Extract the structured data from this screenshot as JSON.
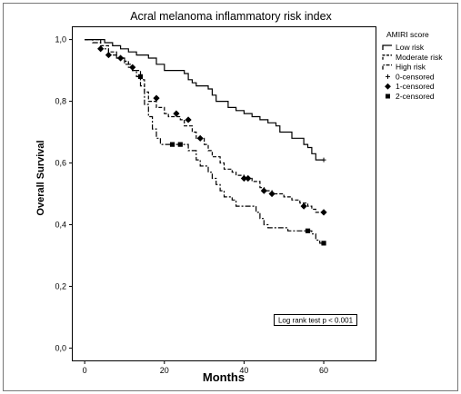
{
  "chart_data": {
    "type": "line",
    "title": "Acral melanoma inflammatory risk index",
    "xlabel": "Months",
    "ylabel": "Overall Survival",
    "xlim": [
      -3,
      73
    ],
    "ylim": [
      -0.04,
      1.04
    ],
    "x_ticks": [
      0,
      20,
      40,
      60
    ],
    "y_ticks": [
      0.0,
      0.2,
      0.4,
      0.6,
      0.8,
      1.0
    ],
    "y_tick_labels": [
      "0,0",
      "0,2",
      "0,4",
      "0,6",
      "0,8",
      "1,0"
    ],
    "grid": false,
    "legend_title": "AMIRI score",
    "legend_position": "top-right",
    "annotation": "Log rank test p < 0.001",
    "series": [
      {
        "name": "Low risk",
        "line_style": "solid",
        "points": [
          [
            0,
            1.0
          ],
          [
            3,
            1.0
          ],
          [
            5,
            0.99
          ],
          [
            7,
            0.98
          ],
          [
            9,
            0.97
          ],
          [
            11,
            0.96
          ],
          [
            13,
            0.95
          ],
          [
            16,
            0.94
          ],
          [
            18,
            0.92
          ],
          [
            20,
            0.9
          ],
          [
            23,
            0.9
          ],
          [
            25,
            0.89
          ],
          [
            26,
            0.87
          ],
          [
            27,
            0.86
          ],
          [
            28,
            0.85
          ],
          [
            31,
            0.84
          ],
          [
            32,
            0.82
          ],
          [
            33,
            0.8
          ],
          [
            35,
            0.8
          ],
          [
            36,
            0.78
          ],
          [
            38,
            0.77
          ],
          [
            40,
            0.76
          ],
          [
            42,
            0.75
          ],
          [
            44,
            0.74
          ],
          [
            46,
            0.73
          ],
          [
            48,
            0.72
          ],
          [
            49,
            0.7
          ],
          [
            51,
            0.7
          ],
          [
            52,
            0.68
          ],
          [
            54,
            0.68
          ],
          [
            55,
            0.66
          ],
          [
            56,
            0.65
          ],
          [
            57,
            0.63
          ],
          [
            58,
            0.61
          ],
          [
            60,
            0.61
          ]
        ],
        "censored": [
          [
            60,
            0.61
          ]
        ],
        "censor_marker": "0-censored"
      },
      {
        "name": "Moderate risk",
        "line_style": "dashed",
        "points": [
          [
            0,
            1.0
          ],
          [
            2,
            1.0
          ],
          [
            4,
            0.98
          ],
          [
            6,
            0.96
          ],
          [
            8,
            0.94
          ],
          [
            10,
            0.93
          ],
          [
            11,
            0.91
          ],
          [
            12,
            0.9
          ],
          [
            14,
            0.87
          ],
          [
            15,
            0.83
          ],
          [
            16,
            0.8
          ],
          [
            18,
            0.78
          ],
          [
            20,
            0.76
          ],
          [
            21,
            0.75
          ],
          [
            24,
            0.74
          ],
          [
            25,
            0.72
          ],
          [
            27,
            0.7
          ],
          [
            28,
            0.68
          ],
          [
            30,
            0.66
          ],
          [
            31,
            0.64
          ],
          [
            32,
            0.62
          ],
          [
            34,
            0.6
          ],
          [
            35,
            0.58
          ],
          [
            37,
            0.57
          ],
          [
            38,
            0.56
          ],
          [
            40,
            0.55
          ],
          [
            42,
            0.54
          ],
          [
            44,
            0.52
          ],
          [
            45,
            0.51
          ],
          [
            47,
            0.5
          ],
          [
            50,
            0.49
          ],
          [
            52,
            0.48
          ],
          [
            54,
            0.47
          ],
          [
            56,
            0.46
          ],
          [
            57,
            0.45
          ],
          [
            58,
            0.44
          ],
          [
            60,
            0.44
          ]
        ],
        "censored": [
          [
            4,
            0.97
          ],
          [
            6,
            0.95
          ],
          [
            9,
            0.94
          ],
          [
            12,
            0.91
          ],
          [
            18,
            0.81
          ],
          [
            23,
            0.76
          ],
          [
            26,
            0.74
          ],
          [
            29,
            0.68
          ],
          [
            40,
            0.55
          ],
          [
            41,
            0.55
          ],
          [
            45,
            0.51
          ],
          [
            47,
            0.5
          ],
          [
            55,
            0.46
          ],
          [
            60,
            0.44
          ]
        ],
        "censor_marker": "1-censored"
      },
      {
        "name": "High risk",
        "line_style": "dash-dot",
        "points": [
          [
            0,
            1.0
          ],
          [
            2,
            0.99
          ],
          [
            4,
            0.97
          ],
          [
            6,
            0.95
          ],
          [
            8,
            0.94
          ],
          [
            10,
            0.92
          ],
          [
            12,
            0.9
          ],
          [
            13,
            0.88
          ],
          [
            14,
            0.85
          ],
          [
            15,
            0.79
          ],
          [
            16,
            0.75
          ],
          [
            17,
            0.71
          ],
          [
            18,
            0.68
          ],
          [
            19,
            0.66
          ],
          [
            21,
            0.66
          ],
          [
            25,
            0.66
          ],
          [
            26,
            0.64
          ],
          [
            28,
            0.61
          ],
          [
            29,
            0.59
          ],
          [
            31,
            0.57
          ],
          [
            32,
            0.55
          ],
          [
            33,
            0.53
          ],
          [
            34,
            0.51
          ],
          [
            35,
            0.49
          ],
          [
            37,
            0.48
          ],
          [
            38,
            0.46
          ],
          [
            41,
            0.46
          ],
          [
            43,
            0.44
          ],
          [
            44,
            0.42
          ],
          [
            45,
            0.4
          ],
          [
            46,
            0.39
          ],
          [
            50,
            0.39
          ],
          [
            51,
            0.38
          ],
          [
            53,
            0.38
          ],
          [
            56,
            0.38
          ],
          [
            57,
            0.37
          ],
          [
            58,
            0.35
          ],
          [
            59,
            0.34
          ],
          [
            60,
            0.34
          ]
        ],
        "censored": [
          [
            14,
            0.88
          ],
          [
            22,
            0.66
          ],
          [
            24,
            0.66
          ],
          [
            56,
            0.38
          ],
          [
            60,
            0.34
          ]
        ],
        "censor_marker": "2-censored"
      }
    ],
    "legend_entries": [
      {
        "label": "Low risk",
        "kind": "solid"
      },
      {
        "label": "Moderate risk",
        "kind": "dashed"
      },
      {
        "label": "High risk",
        "kind": "dash-dot"
      },
      {
        "label": "0-censored",
        "kind": "plus"
      },
      {
        "label": "1-censored",
        "kind": "diamond"
      },
      {
        "label": "2-censored",
        "kind": "square"
      }
    ]
  }
}
